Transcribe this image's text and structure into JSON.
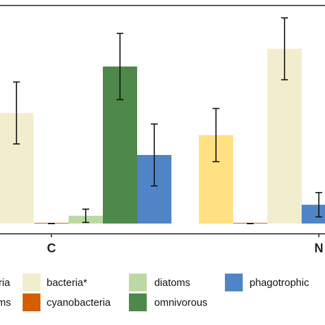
{
  "chart_data": {
    "type": "bar",
    "title": "",
    "xlabel": "",
    "ylabel": "",
    "categories": [
      "C",
      "N"
    ],
    "ylim": [
      0,
      1.0
    ],
    "grid": false,
    "legend_position": "bottom",
    "series": [
      {
        "name": "bacteria",
        "color": "#ffe082",
        "values": [
          null,
          0.4
        ],
        "errors": [
          null,
          0.12
        ],
        "label_visible": "ria"
      },
      {
        "name": "bacteria*",
        "color": "#f2edcc",
        "values": [
          0.5,
          0.79
        ],
        "errors": [
          0.14,
          0.14
        ]
      },
      {
        "name": "cyanobacteria",
        "color": "#d35f00",
        "values": [
          0.0,
          0.0
        ],
        "errors": [
          0.0,
          0.0
        ]
      },
      {
        "name": "diatoms",
        "color": "#bcd9a4",
        "values": [
          0.035,
          null
        ],
        "errors": [
          0.03,
          null
        ]
      },
      {
        "name": "omnivorous",
        "color": "#4e884a",
        "values": [
          0.71,
          null
        ],
        "errors": [
          0.15,
          null
        ]
      },
      {
        "name": "phagotrophic",
        "color": "#4f85c6",
        "values": [
          0.31,
          0.085
        ],
        "errors": [
          0.14,
          0.055
        ]
      },
      {
        "name": "unknown-ms",
        "color": "#d35f00",
        "values": [
          null,
          null
        ],
        "errors": [
          null,
          null
        ],
        "label_visible": "ms"
      }
    ],
    "legend": [
      {
        "label": "ria",
        "color": "#ffe082"
      },
      {
        "label": "bacteria*",
        "color": "#f2edcc"
      },
      {
        "label": "diatoms",
        "color": "#bcd9a4"
      },
      {
        "label": "phagotrophic",
        "color": "#4f85c6"
      },
      {
        "label": "ms",
        "color": "#d35f00"
      },
      {
        "label": "cyanobacteria",
        "color": "#d35f00"
      },
      {
        "label": "omnivorous",
        "color": "#4e884a"
      }
    ]
  }
}
